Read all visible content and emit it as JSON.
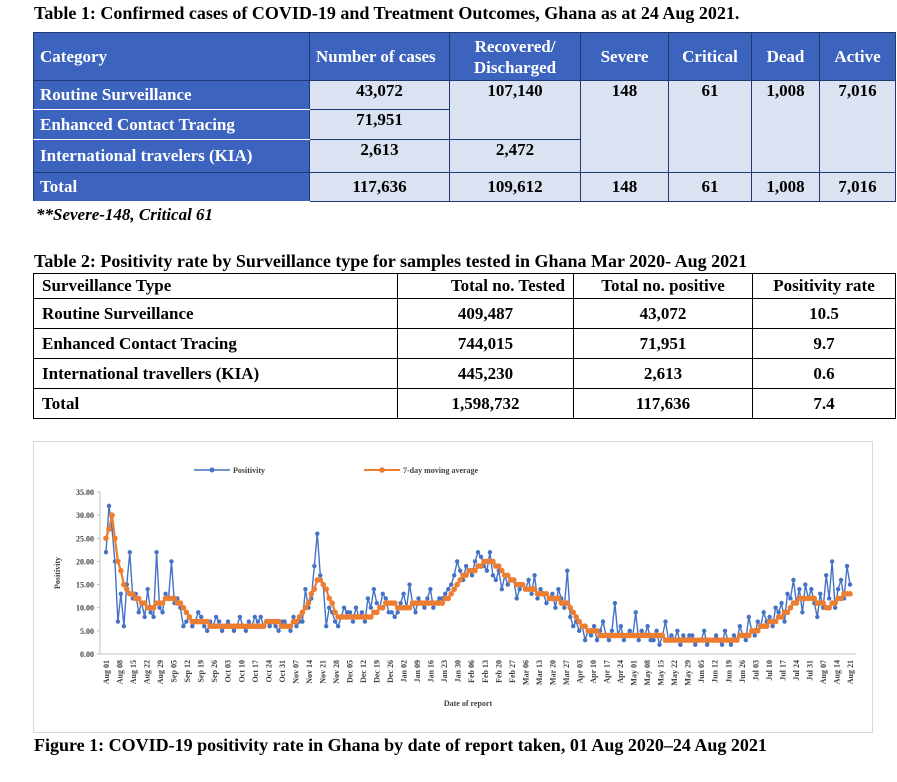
{
  "table1": {
    "caption": "Table 1: Confirmed cases of COVID-19 and Treatment Outcomes, Ghana as at 24 Aug 2021.",
    "headers": {
      "category": "Category",
      "number": "Number of cases",
      "recovered": "Recovered/ Discharged",
      "severe": "Severe",
      "critical": "Critical",
      "dead": "Dead",
      "active": "Active"
    },
    "rows": [
      {
        "label": "Routine Surveillance",
        "number": "43,072",
        "recovered": "107,140",
        "severe": "148",
        "critical": "61",
        "dead": "1,008",
        "active": "7,016"
      },
      {
        "label": "Enhanced Contact Tracing",
        "number": "71,951"
      },
      {
        "label": "International travelers (KIA)",
        "number": "2,613",
        "recovered": "2,472"
      }
    ],
    "total": {
      "label": "Total",
      "number": "117,636",
      "recovered": "109,612",
      "severe": "148",
      "critical": "61",
      "dead": "1,008",
      "active": "7,016"
    },
    "note": "**Severe-148, Critical 61"
  },
  "table2": {
    "caption": "Table 2: Positivity rate by Surveillance type for samples tested in Ghana Mar 2020- Aug 2021",
    "headers": [
      "Surveillance Type",
      "Total no. Tested",
      "Total no. positive",
      "Positivity rate"
    ],
    "rows": [
      [
        "Routine Surveillance",
        "409,487",
        "43,072",
        "10.5"
      ],
      [
        "Enhanced Contact Tracing",
        "744,015",
        "71,951",
        "9.7"
      ],
      [
        "International travellers (KIA)",
        "445,230",
        "2,613",
        "0.6"
      ],
      [
        "Total",
        "1,598,732",
        "117,636",
        "7.4"
      ]
    ]
  },
  "figure": {
    "caption": "Figure 1: COVID-19 positivity rate in Ghana by date of report taken, 01 Aug 2020–24 Aug 2021"
  },
  "chart_data": {
    "type": "line",
    "xlabel": "Date of report",
    "ylabel": "Positivity",
    "ylim": [
      0,
      35
    ],
    "yticks": [
      "0.00",
      "5.00",
      "10.00",
      "15.00",
      "20.00",
      "25.00",
      "30.00",
      "35.00"
    ],
    "legend_position": "top",
    "colors": {
      "positivity": "#4472c4",
      "moving_average": "#ed7d31"
    },
    "x_tick_labels": [
      "Aug 01",
      "Aug 08",
      "Aug 15",
      "Aug 22",
      "Aug 29",
      "Sep 05",
      "Sep 12",
      "Sep 19",
      "Sep 26",
      "Oct 03",
      "Oct 10",
      "Oct 17",
      "Oct 24",
      "Oct 31",
      "Nov 07",
      "Nov 14",
      "Nov 21",
      "Nov 28",
      "Dec 05",
      "Dec 12",
      "Dec 19",
      "Dec 26",
      "Jan 02",
      "Jan 09",
      "Jan 16",
      "Jan 23",
      "Jan 30",
      "Feb 06",
      "Feb 13",
      "Feb 20",
      "Feb 27",
      "Mar 06",
      "Mar 13",
      "Mar 20",
      "Mar 27",
      "Apr 03",
      "Apr 10",
      "Apr 17",
      "Apr 24",
      "May 01",
      "May 08",
      "May 15",
      "May 22",
      "May 29",
      "Jun 05",
      "Jun 12",
      "Jun 19",
      "Jun 26",
      "Jul 03",
      "Jul 10",
      "Jul 17",
      "Jul 24",
      "Jul 31",
      "Aug 07",
      "Aug 14",
      "Aug 21"
    ],
    "series": [
      {
        "name": "Positivity",
        "values": [
          22,
          32,
          27,
          20,
          7,
          13,
          6,
          15,
          22,
          12,
          13,
          9,
          11,
          8,
          14,
          9,
          8,
          22,
          10,
          9,
          13,
          12,
          20,
          11,
          12,
          10,
          6,
          7,
          8,
          6,
          7,
          9,
          8,
          6,
          5,
          7,
          6,
          8,
          7,
          5,
          6,
          7,
          6,
          5,
          6,
          8,
          6,
          5,
          7,
          6,
          8,
          7,
          8,
          6,
          7,
          6,
          7,
          6,
          5,
          7,
          7,
          6,
          5,
          8,
          6,
          7,
          7,
          14,
          10,
          12,
          19,
          26,
          17,
          15,
          6,
          10,
          9,
          7,
          6,
          8,
          10,
          9,
          9,
          7,
          10,
          8,
          9,
          7,
          12,
          10,
          14,
          11,
          10,
          13,
          12,
          9,
          9,
          8,
          9,
          11,
          13,
          10,
          15,
          11,
          9,
          12,
          11,
          10,
          12,
          14,
          10,
          11,
          12,
          12,
          13,
          14,
          15,
          17,
          20,
          18,
          16,
          19,
          18,
          17,
          20,
          22,
          21,
          19,
          18,
          22,
          17,
          16,
          18,
          14,
          17,
          15,
          16,
          16,
          12,
          14,
          15,
          14,
          16,
          13,
          17,
          12,
          14,
          13,
          11,
          12,
          13,
          10,
          14,
          12,
          10,
          18,
          8,
          6,
          7,
          5,
          6,
          3,
          5,
          4,
          6,
          3,
          5,
          7,
          4,
          3,
          5,
          11,
          4,
          6,
          3,
          4,
          5,
          4,
          9,
          3,
          5,
          4,
          6,
          3,
          3,
          5,
          2,
          4,
          7,
          3,
          4,
          3,
          5,
          2,
          4,
          3,
          4,
          4,
          2,
          3,
          3,
          5,
          2,
          3,
          3,
          4,
          3,
          2,
          5,
          3,
          2,
          4,
          3,
          6,
          4,
          3,
          8,
          5,
          4,
          7,
          6,
          9,
          7,
          8,
          6,
          10,
          9,
          11,
          7,
          13,
          12,
          16,
          11,
          14,
          9,
          15,
          12,
          14,
          11,
          8,
          13,
          10,
          17,
          12,
          20,
          10,
          14,
          16,
          12,
          19,
          15
        ]
      },
      {
        "name": "7-day moving average",
        "values": [
          25,
          27,
          30,
          25,
          20,
          18,
          15,
          14,
          13,
          13,
          12,
          12,
          11,
          11,
          10,
          10,
          10,
          11,
          11,
          11,
          12,
          12,
          12,
          12,
          11,
          11,
          10,
          9,
          8,
          7,
          7,
          7,
          7,
          7,
          7,
          6,
          6,
          6,
          6,
          6,
          6,
          6,
          6,
          6,
          6,
          6,
          6,
          6,
          6,
          6,
          6,
          6,
          6,
          6,
          7,
          7,
          7,
          7,
          7,
          6,
          6,
          6,
          6,
          7,
          7,
          8,
          9,
          10,
          11,
          13,
          14,
          16,
          16,
          15,
          14,
          12,
          11,
          9,
          8,
          8,
          8,
          8,
          8,
          8,
          8,
          8,
          8,
          8,
          8,
          8,
          9,
          9,
          10,
          10,
          11,
          11,
          11,
          11,
          10,
          10,
          10,
          10,
          10,
          11,
          11,
          11,
          11,
          11,
          11,
          11,
          11,
          11,
          11,
          11,
          12,
          12,
          13,
          14,
          15,
          16,
          17,
          17,
          18,
          18,
          18,
          19,
          19,
          20,
          20,
          20,
          20,
          19,
          19,
          18,
          17,
          17,
          16,
          16,
          15,
          15,
          15,
          14,
          14,
          14,
          14,
          13,
          13,
          13,
          13,
          12,
          12,
          12,
          12,
          11,
          11,
          11,
          10,
          9,
          8,
          7,
          6,
          6,
          5,
          5,
          5,
          5,
          4,
          4,
          4,
          4,
          4,
          4,
          4,
          4,
          4,
          4,
          4,
          4,
          4,
          4,
          4,
          4,
          4,
          4,
          4,
          4,
          4,
          4,
          3,
          3,
          3,
          3,
          3,
          3,
          3,
          3,
          3,
          3,
          3,
          3,
          3,
          3,
          3,
          3,
          3,
          3,
          3,
          3,
          3,
          3,
          3,
          3,
          3,
          4,
          4,
          4,
          4,
          5,
          5,
          5,
          6,
          6,
          6,
          7,
          7,
          7,
          8,
          8,
          9,
          9,
          10,
          11,
          11,
          12,
          12,
          12,
          12,
          12,
          12,
          11,
          11,
          11,
          10,
          10,
          11,
          11,
          12,
          12,
          13,
          13,
          13
        ]
      }
    ]
  }
}
